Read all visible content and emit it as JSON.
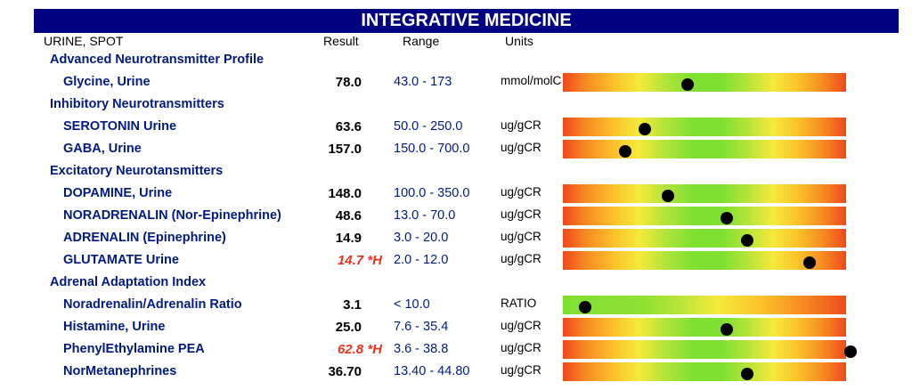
{
  "header": {
    "title": "INTEGRATIVE MEDICINE"
  },
  "columns": {
    "specimen": "URINE, SPOT",
    "result": "Result",
    "range": "Range",
    "units": "Units"
  },
  "rows": [
    {
      "kind": "section",
      "label": "Advanced Neurotransmitter Profile"
    },
    {
      "kind": "test",
      "name": "Glycine, Urine",
      "result": "78.0",
      "range": "43.0 - 173",
      "units": "mmol/molC",
      "level": 0.44,
      "bar": "mid"
    },
    {
      "kind": "section",
      "label": "Inhibitory Neurotransmitters"
    },
    {
      "kind": "test",
      "name": "SEROTONIN Urine",
      "result": "63.6",
      "range": "50.0 - 250.0",
      "units": "ug/gCR",
      "level": 0.29,
      "bar": "mid"
    },
    {
      "kind": "test",
      "name": "GABA, Urine",
      "result": "157.0",
      "range": "150.0 - 700.0",
      "units": "ug/gCR",
      "level": 0.22,
      "bar": "mid"
    },
    {
      "kind": "section",
      "label": "Excitatory Neurotansmitters"
    },
    {
      "kind": "test",
      "name": "DOPAMINE, Urine",
      "result": "148.0",
      "range": "100.0 - 350.0",
      "units": "ug/gCR",
      "level": 0.37,
      "bar": "mid"
    },
    {
      "kind": "test",
      "name": "NORADRENALIN (Nor-Epinephrine)",
      "result": "48.6",
      "range": "13.0 - 70.0",
      "units": "ug/gCR",
      "level": 0.58,
      "bar": "mid"
    },
    {
      "kind": "test",
      "name": "ADRENALIN (Epinephrine)",
      "result": "14.9",
      "range": "3.0 - 20.0",
      "units": "ug/gCR",
      "level": 0.65,
      "bar": "mid"
    },
    {
      "kind": "test",
      "name": "GLUTAMATE Urine",
      "result": "14.7 *H",
      "range": "2.0 - 12.0",
      "units": "ug/gCR",
      "level": 0.87,
      "bar": "mid",
      "high": true
    },
    {
      "kind": "section",
      "label": "Adrenal Adaptation Index"
    },
    {
      "kind": "test",
      "name": "Noradrenalin/Adrenalin Ratio",
      "result": "3.1",
      "range": "< 10.0",
      "units": "RATIO",
      "level": 0.08,
      "bar": "low"
    },
    {
      "kind": "test",
      "name": "Histamine, Urine",
      "result": "25.0",
      "range": "7.6 - 35.4",
      "units": "ug/gCR",
      "level": 0.58,
      "bar": "mid"
    },
    {
      "kind": "test",
      "name": "PhenylEthylamine PEA",
      "result": "62.8 *H",
      "range": "3.6 - 38.8",
      "units": "ug/gCR",
      "level": 1.02,
      "bar": "mid",
      "high": true
    },
    {
      "kind": "test",
      "name": "NorMetanephrines",
      "result": "36.70",
      "range": "13.40 - 44.80",
      "units": "ug/gCR",
      "level": 0.65,
      "bar": "mid"
    }
  ]
}
